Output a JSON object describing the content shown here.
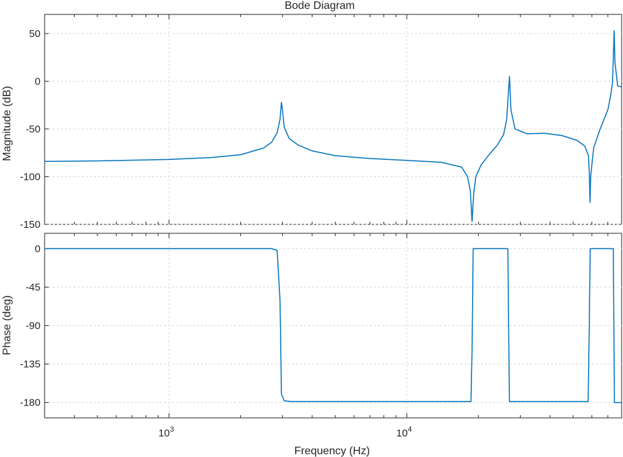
{
  "chart_data": {
    "type": "line",
    "title": "Bode Diagram",
    "xlabel": "Frequency  (Hz)",
    "xscale": "log",
    "xlim": [
      300,
      80000
    ],
    "x_major_ticks": [
      1000,
      10000
    ],
    "x_major_tick_labels": [
      {
        "base": "10",
        "exp": "3"
      },
      {
        "base": "10",
        "exp": "4"
      }
    ],
    "grid": true,
    "line_color": "#0072BD",
    "panels": [
      {
        "id": "magnitude",
        "ylabel": "Magnitude (dB)",
        "ylim": [
          -150,
          70
        ],
        "yticks": [
          -150,
          -100,
          -50,
          0,
          50
        ],
        "ytick_labels": [
          "-150",
          "-100",
          "-50",
          "0",
          "50"
        ],
        "series": [
          {
            "x": [
              300,
              500,
              1000,
              1500,
              2000,
              2500,
              2700,
              2850,
              2930,
              2970,
              3000,
              3050,
              3200,
              3500,
              4000,
              5000,
              7000,
              10000,
              14000,
              17000,
              18000,
              18500,
              18800,
              19100,
              19500,
              20500,
              22000,
              24000,
              25500,
              26300,
              26700,
              27000,
              27400,
              28500,
              32000,
              38000,
              45000,
              52000,
              56000,
              58000,
              58600,
              58900,
              59300,
              61000,
              65000,
              70000,
              72000,
              73200,
              73800,
              74400,
              75000,
              77000,
              80000
            ],
            "y": [
              -84,
              -83.5,
              -82,
              -80,
              -77,
              -70,
              -64,
              -54,
              -40,
              -22,
              -30,
              -48,
              -60,
              -67,
              -73,
              -78,
              -81,
              -83,
              -85,
              -90,
              -100,
              -115,
              -147,
              -118,
              -100,
              -88,
              -78,
              -67,
              -56,
              -40,
              -14,
              5,
              -30,
              -50,
              -55,
              -54.5,
              -57,
              -62,
              -68,
              -78,
              -100,
              -127,
              -100,
              -70,
              -50,
              -30,
              -15,
              -2,
              25,
              53,
              20,
              -5,
              -6
            ]
          }
        ]
      },
      {
        "id": "phase",
        "ylabel": "Phase (deg)",
        "ylim": [
          -198,
          18
        ],
        "yticks": [
          -180,
          -135,
          -90,
          -45,
          0
        ],
        "ytick_labels": [
          "-180",
          "-135",
          "-90",
          "-45",
          "0"
        ],
        "series": [
          {
            "x": [
              300,
              2700,
              2850,
              2930,
              2970,
              3050,
              3300,
              18600,
              18800,
              19000,
              26600,
              26800,
              27000,
              57800,
              58500,
              59000,
              73800,
              74200,
              74600,
              80000
            ],
            "y": [
              0,
              0,
              -2,
              -60,
              -170,
              -178,
              -179,
              -179,
              -120,
              0,
              0,
              -90,
              -179,
              -179,
              -90,
              0,
              0,
              -90,
              -180,
              -180
            ]
          }
        ]
      }
    ]
  }
}
